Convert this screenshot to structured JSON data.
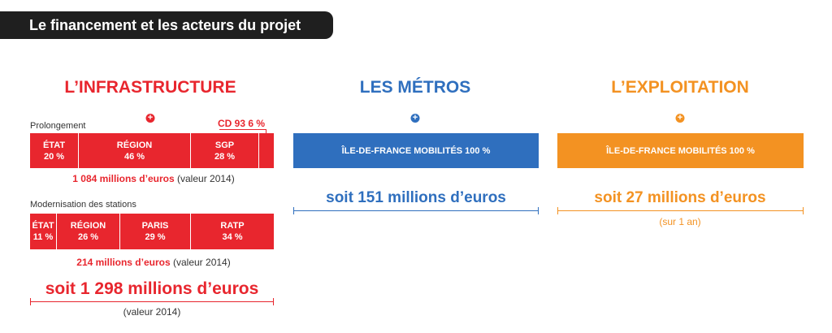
{
  "header": {
    "title": "Le financement et les acteurs du projet"
  },
  "colors": {
    "red": "#e8262e",
    "blue": "#2f6fbe",
    "orange": "#f39222"
  },
  "infrastructure": {
    "title": "L’INFRASTRUCTURE",
    "plus": "+",
    "prolongement": {
      "label": "Prolongement",
      "cd_label": "CD 93 6 %",
      "segments": [
        {
          "name": "ÉTAT",
          "percent": "20 %",
          "value": 20
        },
        {
          "name": "RÉGION",
          "percent": "46 %",
          "value": 46
        },
        {
          "name": "SGP",
          "percent": "28 %",
          "value": 28
        },
        {
          "name": "",
          "percent": "",
          "value": 6
        }
      ],
      "total": "1 084 millions d’euros",
      "total_note": "(valeur 2014)"
    },
    "modernisation": {
      "label": "Modernisation des stations",
      "segments": [
        {
          "name": "ÉTAT",
          "percent": "11 %",
          "value": 11
        },
        {
          "name": "RÉGION",
          "percent": "26 %",
          "value": 26
        },
        {
          "name": "PARIS",
          "percent": "29 %",
          "value": 29
        },
        {
          "name": "RATP",
          "percent": "34 %",
          "value": 34
        }
      ],
      "total": "214 millions d’euros",
      "total_note": "(valeur 2014)"
    },
    "grand_total": "soit 1 298 millions d’euros",
    "grand_total_note": "(valeur 2014)"
  },
  "metros": {
    "title": "LES MÉTROS",
    "plus": "+",
    "bar_label": "ÎLE-DE-FRANCE MOBILITÉS 100 %",
    "total": "soit 151 millions d’euros"
  },
  "exploitation": {
    "title": "L’EXPLOITATION",
    "plus": "+",
    "bar_label": "ÎLE-DE-FRANCE MOBILITÉS 100 %",
    "total": "soit 27 millions d’euros",
    "note": "(sur 1 an)"
  }
}
